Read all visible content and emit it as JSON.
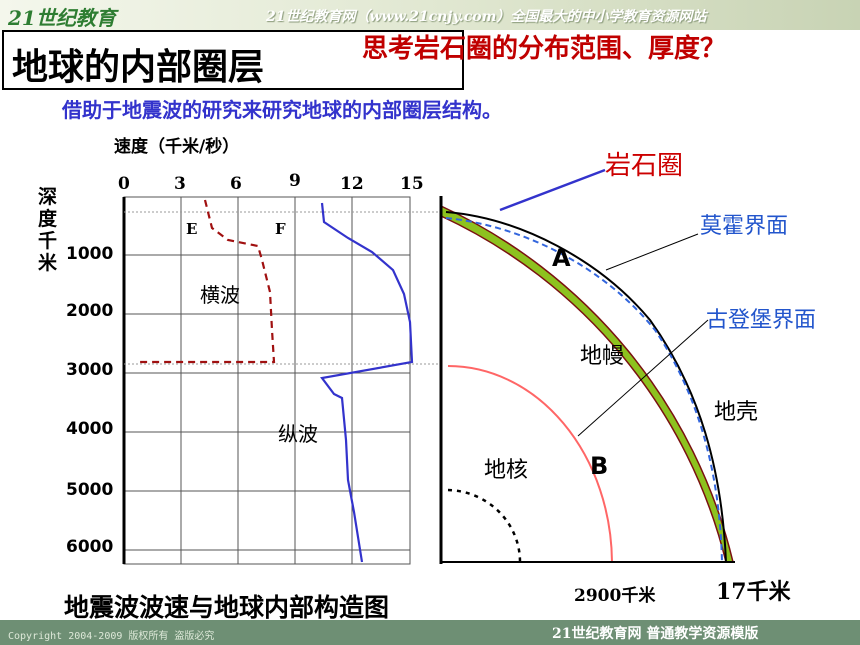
{
  "header": {
    "logo_text": "21世纪教育",
    "site_text": "21世纪教育网（www.21cnjy.com）全国最大的中小学教育资源网站"
  },
  "title": "地球的内部圈层",
  "question": "思考岩石圈的分布范围、厚度？",
  "subtitle": "借助于地震波的研究来研究地球的内部圈层结构。",
  "graph": {
    "speed_label": "速度（千米/秒）",
    "speed_ticks": [
      "0",
      "3",
      "6",
      "9",
      "12",
      "15"
    ],
    "depth_label": "深度千米",
    "depth_ticks": [
      "1000",
      "2000",
      "3000",
      "4000",
      "5000",
      "6000"
    ],
    "wave_e": "E",
    "wave_f": "F",
    "shear_label": "横波",
    "pressure_label": "纵波"
  },
  "earth": {
    "lithosphere": "岩石圈",
    "moho": "莫霍界面",
    "gutenberg": "古登堡界面",
    "mantle": "地幔",
    "crust": "地壳",
    "core": "地核",
    "point_a": "A",
    "point_b": "B",
    "depth_2900": "2900千米",
    "depth_17": "17千米"
  },
  "caption": "地震波波速与地球内部构造图",
  "footer": {
    "copyright": "Copyright 2004-2009 版权所有 盗版必究",
    "brand": "21世纪教育网   普通教学资源模版"
  },
  "colors": {
    "shear_wave": "#a01010",
    "pressure_wave": "#3333cc",
    "crust_fill": "#8dc21f",
    "core_boundary": "#ff6666",
    "title_red": "#c00000"
  }
}
